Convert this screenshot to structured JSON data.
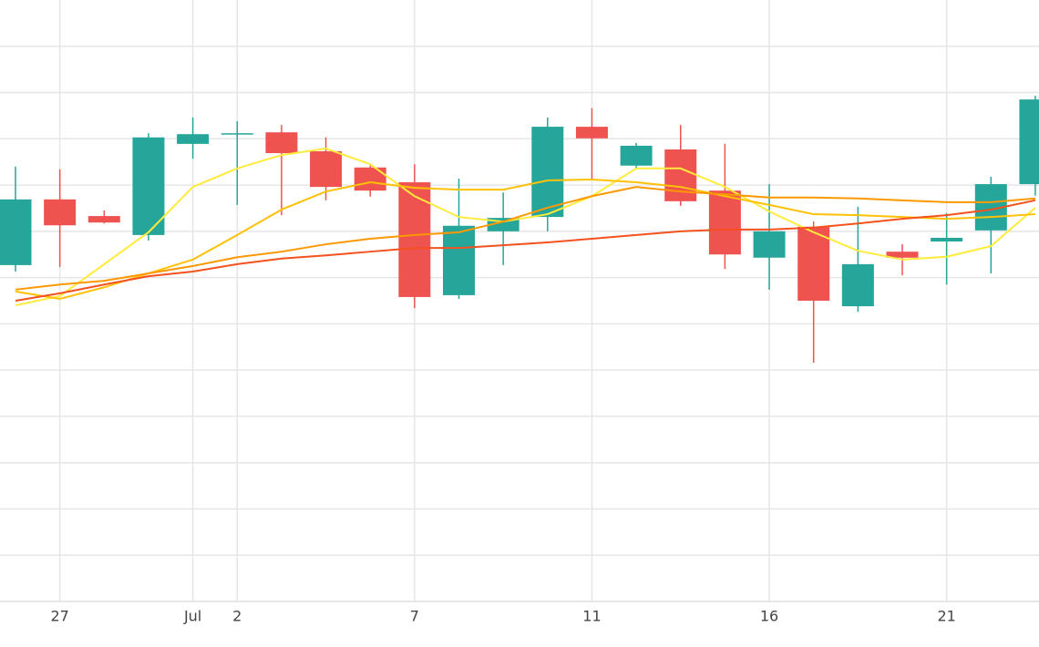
{
  "chart_data": {
    "type": "candlestick",
    "categories": [
      null,
      "27",
      null,
      null,
      "Jul",
      "2",
      null,
      null,
      null,
      "7",
      null,
      null,
      null,
      "11",
      null,
      null,
      null,
      "16",
      null,
      null,
      null,
      "21",
      null,
      null
    ],
    "open": [
      7.27,
      8.69,
      8.33,
      7.92,
      9.89,
      10.1,
      10.14,
      9.73,
      9.38,
      9.06,
      6.62,
      8.0,
      8.31,
      10.26,
      9.42,
      9.77,
      8.88,
      7.43,
      8.1,
      6.38,
      7.56,
      7.78,
      8.02,
      9.02
    ],
    "high": [
      9.4,
      9.34,
      8.45,
      10.12,
      10.46,
      10.38,
      10.3,
      10.03,
      9.42,
      9.45,
      9.14,
      8.84,
      10.46,
      10.66,
      9.91,
      10.3,
      9.89,
      9.02,
      8.21,
      8.53,
      7.72,
      8.39,
      9.18,
      10.93
    ],
    "low": [
      7.13,
      7.23,
      8.17,
      7.8,
      9.57,
      8.57,
      8.35,
      8.67,
      8.75,
      6.34,
      6.54,
      7.27,
      8.0,
      9.1,
      9.36,
      8.55,
      7.19,
      6.74,
      5.16,
      6.26,
      7.05,
      6.85,
      7.09,
      8.77
    ],
    "close": [
      8.69,
      8.13,
      8.19,
      10.03,
      10.1,
      10.12,
      9.69,
      8.96,
      8.88,
      6.58,
      8.12,
      8.29,
      10.26,
      10.01,
      9.85,
      8.65,
      7.5,
      8.0,
      6.5,
      7.29,
      7.43,
      7.86,
      9.02,
      10.85
    ],
    "up_color": "#26a69a",
    "down_color": "#ef5350",
    "series": [
      {
        "color": "#ffeb3b",
        "values": [
          6.4,
          6.6,
          7.29,
          7.98,
          8.96,
          9.36,
          9.65,
          9.79,
          9.45,
          8.76,
          8.31,
          8.21,
          8.37,
          8.76,
          9.36,
          9.36,
          8.96,
          8.43,
          7.98,
          7.58,
          7.39,
          7.45,
          7.68,
          8.51
        ]
      },
      {
        "color": "#ffc107",
        "values": [
          6.7,
          6.54,
          6.79,
          7.09,
          7.39,
          7.92,
          8.47,
          8.86,
          9.06,
          8.94,
          8.9,
          8.9,
          9.1,
          9.12,
          9.06,
          8.96,
          8.76,
          8.57,
          8.37,
          8.35,
          8.31,
          8.27,
          8.31,
          8.37
        ]
      },
      {
        "color": "#ff9800",
        "values": [
          6.74,
          6.85,
          6.93,
          7.09,
          7.25,
          7.44,
          7.56,
          7.72,
          7.84,
          7.92,
          7.98,
          8.21,
          8.51,
          8.76,
          8.96,
          8.86,
          8.8,
          8.73,
          8.73,
          8.71,
          8.67,
          8.63,
          8.63,
          8.71
        ]
      },
      {
        "color": "#f4511e",
        "values": [
          6.5,
          6.66,
          6.85,
          7.03,
          7.13,
          7.29,
          7.41,
          7.48,
          7.56,
          7.64,
          7.64,
          7.7,
          7.76,
          7.84,
          7.92,
          8.0,
          8.04,
          8.04,
          8.08,
          8.17,
          8.27,
          8.35,
          8.47,
          8.67
        ]
      }
    ],
    "ylim": [
      0,
      13
    ],
    "yticks": [
      1,
      2,
      3,
      4,
      5,
      6,
      7,
      8,
      9,
      10,
      11,
      12
    ],
    "grid": true
  }
}
